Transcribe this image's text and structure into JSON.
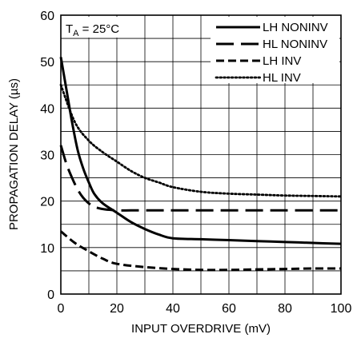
{
  "chart_data": {
    "type": "line",
    "xlabel": "INPUT OVERDRIVE (mV)",
    "ylabel": "PROPAGATION DELAY (µs)",
    "xlim": [
      0,
      100
    ],
    "ylim": [
      0,
      60
    ],
    "x_ticks": [
      "0",
      "20",
      "40",
      "60",
      "80",
      "100"
    ],
    "y_ticks": [
      "0",
      "10",
      "20",
      "30",
      "40",
      "50",
      "60"
    ],
    "grid": true,
    "legend_placement": "top-right",
    "annotation": {
      "prefix": "T",
      "subscript": "A",
      "suffix": " = 25°C"
    },
    "series": [
      {
        "name": "LH NONINV",
        "style": "solid",
        "x": [
          0,
          2,
          4,
          6,
          8,
          10,
          12,
          15,
          20,
          25,
          30,
          35,
          40,
          50,
          60,
          70,
          80,
          90,
          100
        ],
        "y": [
          51,
          44,
          37,
          31,
          27,
          24,
          21.5,
          19.5,
          17.5,
          15.5,
          14,
          12.8,
          12,
          11.8,
          11.6,
          11.4,
          11.2,
          11,
          10.8
        ]
      },
      {
        "name": "HL NONINV",
        "style": "long-dash",
        "x": [
          0,
          2,
          4,
          6,
          8,
          10,
          12,
          14,
          16,
          18,
          20,
          25,
          30,
          40,
          60,
          80,
          100
        ],
        "y": [
          32,
          28,
          25,
          22.5,
          20.7,
          19.5,
          18.8,
          18.4,
          18.2,
          18.1,
          18,
          18,
          18,
          18,
          18,
          18,
          18
        ]
      },
      {
        "name": "LH INV",
        "style": "dash",
        "x": [
          0,
          5,
          10,
          15,
          20,
          30,
          40,
          50,
          60,
          70,
          80,
          90,
          100
        ],
        "y": [
          13.5,
          11,
          9.2,
          7.6,
          6.5,
          5.8,
          5.4,
          5.2,
          5.2,
          5.3,
          5.4,
          5.5,
          5.5
        ]
      },
      {
        "name": "HL INV",
        "style": "dotted",
        "x": [
          0,
          5,
          10,
          15,
          20,
          25,
          30,
          35,
          40,
          50,
          60,
          70,
          80,
          90,
          100
        ],
        "y": [
          45,
          37,
          33,
          30.5,
          28.5,
          26.5,
          25,
          24,
          23,
          22,
          21.6,
          21.4,
          21.2,
          21.1,
          21
        ]
      }
    ]
  }
}
